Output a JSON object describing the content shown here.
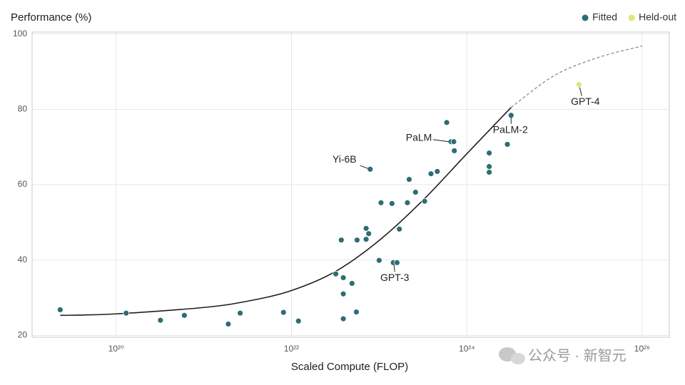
{
  "chart_data": {
    "type": "scatter",
    "y_label": "Performance (%)",
    "x_label": "Scaled Compute (FLOP)",
    "x_log": true,
    "grid": true,
    "legend": "top-right",
    "xlim": [
      1.1e+19,
      2.04e+26
    ],
    "ylim": [
      19.5,
      100.5
    ],
    "xticks": [
      {
        "value": 1e+20,
        "label": "10²⁰"
      },
      {
        "value": 1e+22,
        "label": "10²²"
      },
      {
        "value": 1e+24,
        "label": "10²⁴"
      },
      {
        "value": 1e+26,
        "label": "10²⁶"
      }
    ],
    "yticks": [
      20,
      40,
      60,
      80,
      100
    ],
    "series": [
      {
        "name": "Fitted",
        "color": "#2d6e74",
        "x": [
          2.3e+19,
          1.3e+20,
          3.2e+20,
          6e+20,
          1.9e+21,
          2.6e+21,
          8.1e+21,
          1.2e+22,
          3.2e+22,
          3.7e+22,
          3.9e+22,
          3.9e+22,
          3.9e+22,
          4.9e+22,
          5.5e+22,
          5.6e+22,
          7.1e+22,
          7.1e+22,
          7.6e+22,
          7.9e+22,
          1.05e+23,
          1e+23,
          1.4e+23,
          1.45e+23,
          1.6e+23,
          1.7e+23,
          2.2e+23,
          2.1e+23,
          2.6e+23,
          3.3e+23,
          3.9e+23,
          4.6e+23,
          5.9e+23,
          6.6e+23,
          7.1e+23,
          7.2e+23,
          1.8e+24,
          1.8e+24,
          1.8e+24,
          2.9e+24,
          3.2e+24
        ],
        "values": [
          26.8,
          25.9,
          24.0,
          25.3,
          23.0,
          25.9,
          26.1,
          23.8,
          36.3,
          45.3,
          35.3,
          31.0,
          24.4,
          33.8,
          26.2,
          45.3,
          48.4,
          45.5,
          47.0,
          64.1,
          55.2,
          39.9,
          55.0,
          39.3,
          39.3,
          48.2,
          61.4,
          55.2,
          58.0,
          55.6,
          62.9,
          63.5,
          76.5,
          71.4,
          71.4,
          69.0,
          68.4,
          64.8,
          63.3,
          70.7,
          78.4
        ],
        "point_labels": [
          null,
          null,
          null,
          null,
          null,
          null,
          null,
          null,
          null,
          null,
          null,
          null,
          null,
          null,
          null,
          null,
          null,
          null,
          null,
          "Yi-6B",
          null,
          null,
          null,
          "GPT-3",
          null,
          null,
          null,
          null,
          null,
          null,
          null,
          null,
          null,
          "PaLM",
          null,
          null,
          null,
          null,
          null,
          null,
          "PaLM-2"
        ]
      },
      {
        "name": "Held-out",
        "color": "#dfe67c",
        "x": [
          1.9e+25
        ],
        "values": [
          86.6
        ],
        "point_labels": [
          "GPT-4"
        ]
      }
    ],
    "curves": [
      {
        "style": "solid",
        "color": "#1e1e1e",
        "x": [
          2.3e+19,
          1e+20,
          1e+21,
          3.2e+21,
          1e+22,
          3.2e+22,
          1e+23,
          3.2e+23,
          1e+24,
          3.2e+24
        ],
        "values": [
          25.3,
          25.7,
          27.4,
          29.1,
          31.9,
          37.0,
          45.2,
          56.0,
          68.2,
          80.5
        ]
      },
      {
        "style": "dashed",
        "color": "#8a8a8a",
        "x": [
          3.2e+24,
          1e+25,
          3.2e+25,
          1e+26
        ],
        "values": [
          80.5,
          89.0,
          93.8,
          96.8
        ]
      }
    ],
    "watermark": "公众号 · 新智元"
  }
}
